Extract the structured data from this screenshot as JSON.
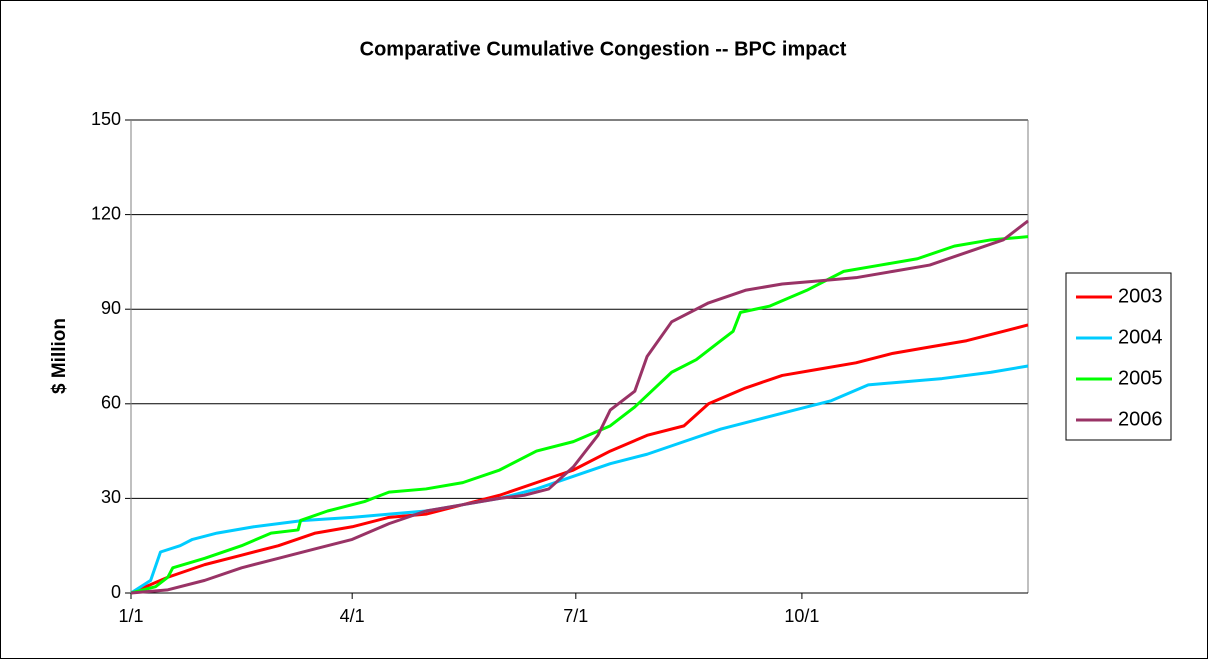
{
  "chart_data": {
    "type": "line",
    "title": "Comparative Cumulative Congestion -- BPC impact",
    "y_label": "$ Million",
    "xlim": [
      0,
      365
    ],
    "xticks": [
      {
        "value": 0,
        "label": "1/1"
      },
      {
        "value": 90,
        "label": "4/1"
      },
      {
        "value": 181,
        "label": "7/1"
      },
      {
        "value": 273,
        "label": "10/1"
      }
    ],
    "ylim": [
      0,
      150
    ],
    "yticks": [
      0,
      30,
      60,
      90,
      120,
      150
    ],
    "grid": true,
    "legend": "right",
    "series": [
      {
        "name": "2003",
        "color": "#ff0000",
        "x": [
          0,
          15,
          30,
          45,
          60,
          75,
          90,
          105,
          120,
          135,
          150,
          165,
          180,
          195,
          210,
          225,
          235,
          250,
          265,
          280,
          295,
          310,
          325,
          340,
          355,
          365
        ],
        "values": [
          0,
          5,
          9,
          12,
          15,
          19,
          21,
          24,
          25,
          28,
          31,
          35,
          39,
          45,
          50,
          53,
          60,
          65,
          69,
          71,
          73,
          76,
          78,
          80,
          83,
          85
        ]
      },
      {
        "name": "2004",
        "color": "#00ccff",
        "x": [
          0,
          8,
          12,
          20,
          25,
          35,
          50,
          70,
          90,
          105,
          120,
          135,
          150,
          165,
          180,
          195,
          210,
          225,
          240,
          255,
          270,
          285,
          300,
          315,
          330,
          350,
          365
        ],
        "values": [
          0,
          4,
          13,
          15,
          17,
          19,
          21,
          23,
          24,
          25,
          26,
          28,
          30,
          33,
          37,
          41,
          44,
          48,
          52,
          55,
          58,
          61,
          66,
          67,
          68,
          70,
          72
        ]
      },
      {
        "name": "2005",
        "color": "#00ff00",
        "x": [
          0,
          10,
          15,
          17,
          30,
          45,
          57,
          68,
          69,
          80,
          95,
          105,
          120,
          135,
          150,
          165,
          180,
          195,
          205,
          220,
          230,
          240,
          245,
          248,
          260,
          275,
          290,
          305,
          320,
          335,
          350,
          365
        ],
        "values": [
          0,
          2,
          5,
          8,
          11,
          15,
          19,
          20,
          23,
          26,
          29,
          32,
          33,
          35,
          39,
          45,
          48,
          53,
          59,
          70,
          74,
          80,
          83,
          89,
          91,
          96,
          102,
          104,
          106,
          110,
          112,
          113
        ]
      },
      {
        "name": "2006",
        "color": "#993366",
        "x": [
          0,
          15,
          30,
          45,
          60,
          75,
          90,
          105,
          120,
          135,
          150,
          160,
          170,
          180,
          190,
          195,
          205,
          210,
          220,
          235,
          250,
          265,
          280,
          295,
          310,
          325,
          340,
          355,
          365
        ],
        "values": [
          0,
          1,
          4,
          8,
          11,
          14,
          17,
          22,
          26,
          28,
          30,
          31,
          33,
          40,
          50,
          58,
          64,
          75,
          86,
          92,
          96,
          98,
          99,
          100,
          102,
          104,
          108,
          112,
          118
        ]
      }
    ]
  }
}
